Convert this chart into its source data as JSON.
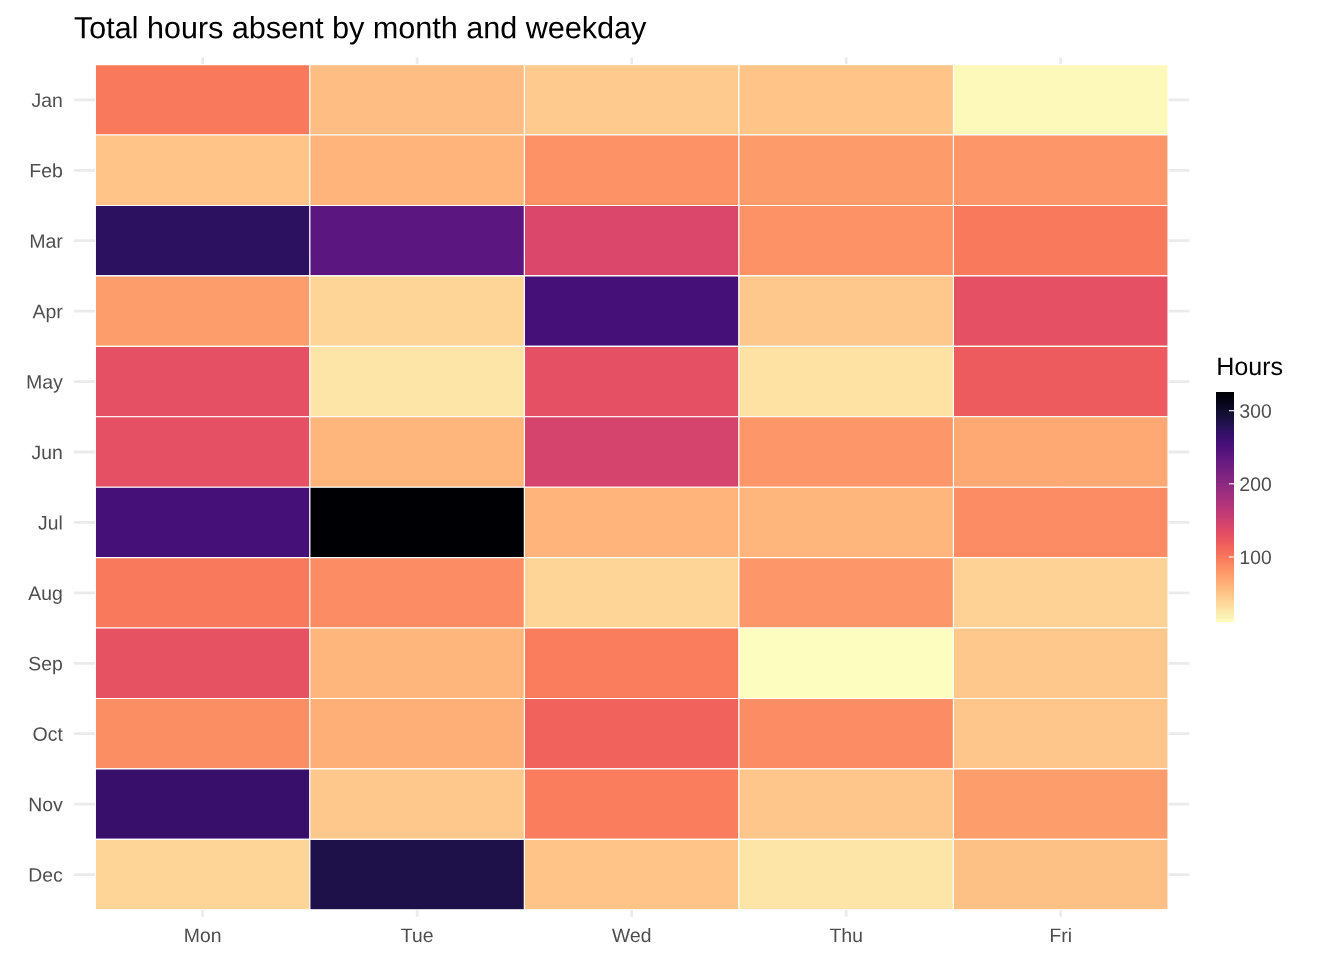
{
  "chart_data": {
    "type": "heatmap",
    "title": "Total hours absent by month and weekday",
    "legend_title": "Hours",
    "categories": [
      "Mon",
      "Tue",
      "Wed",
      "Thu",
      "Fri"
    ],
    "y_categories": [
      "Jan",
      "Feb",
      "Mar",
      "Apr",
      "May",
      "Jun",
      "Jul",
      "Aug",
      "Sep",
      "Oct",
      "Nov",
      "Dec"
    ],
    "cells": [
      [
        99,
        55,
        46,
        50,
        14
      ],
      [
        50,
        61,
        83,
        77,
        80
      ],
      [
        272,
        238,
        140,
        83,
        99
      ],
      [
        75,
        39,
        255,
        47,
        130
      ],
      [
        130,
        27,
        130,
        30,
        120
      ],
      [
        130,
        59,
        145,
        80,
        68
      ],
      [
        255,
        326,
        61,
        59,
        87
      ],
      [
        99,
        87,
        39,
        80,
        41
      ],
      [
        128,
        59,
        96,
        11,
        47
      ],
      [
        86,
        65,
        115,
        87,
        49
      ],
      [
        265,
        47,
        97,
        49,
        75
      ],
      [
        39,
        285,
        50,
        27,
        52
      ]
    ],
    "clim": [
      11,
      326
    ],
    "cticks": [
      100,
      200,
      300
    ],
    "grid": true
  }
}
